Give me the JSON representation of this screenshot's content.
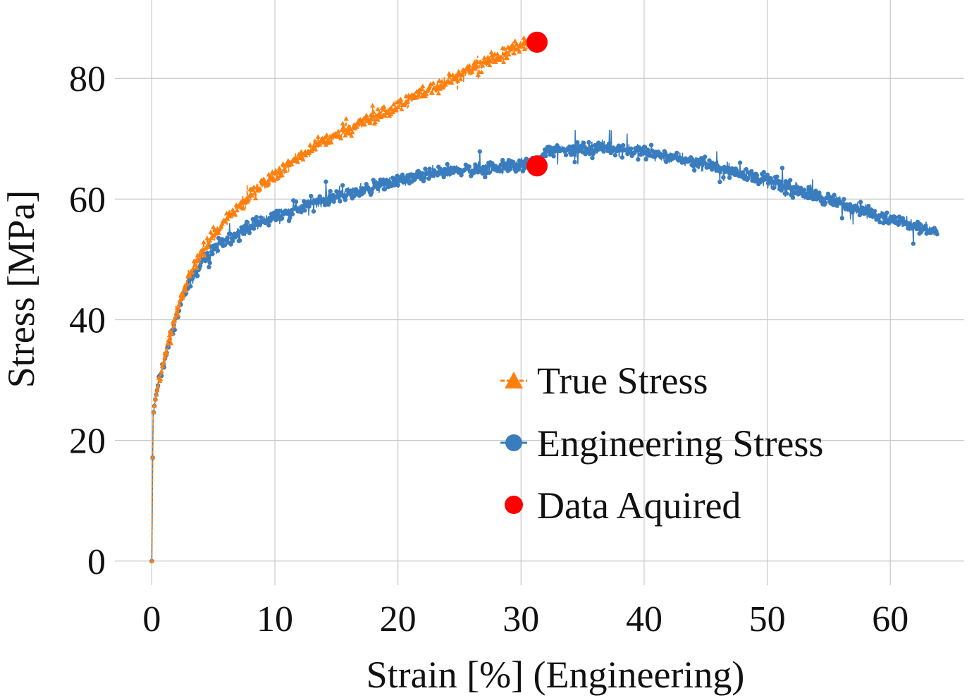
{
  "chart_data": {
    "type": "line",
    "xlabel": "Strain [%] (Engineering)",
    "ylabel": "Stress [MPa]",
    "xlim": [
      -3,
      66
    ],
    "ylim": [
      -4,
      93
    ],
    "xticks": [
      0,
      10,
      20,
      30,
      40,
      50,
      60
    ],
    "yticks": [
      0,
      20,
      40,
      60,
      80
    ],
    "grid": true,
    "legend_position": "bottom-right",
    "series": [
      {
        "name": "True Stress",
        "color": "#ff7f0e",
        "marker": "triangle",
        "line_style": "dashed",
        "x": [
          0,
          0.1,
          0.3,
          0.6,
          1,
          1.5,
          2,
          2.5,
          3,
          4,
          5,
          6,
          7,
          8,
          9,
          10,
          11,
          12,
          13,
          14,
          15,
          16,
          17,
          18,
          19,
          20,
          21,
          22,
          23,
          24,
          25,
          26,
          27,
          28,
          29,
          30,
          31.3
        ],
        "y": [
          0,
          24,
          27,
          30,
          33,
          37,
          41,
          44,
          47,
          51,
          54,
          56.5,
          58.5,
          60.5,
          62.5,
          64,
          65.5,
          67,
          68.5,
          69.5,
          70.5,
          71.5,
          72.5,
          73.5,
          74.5,
          75.5,
          76.5,
          77.5,
          78.5,
          79.5,
          80.5,
          81.5,
          82.5,
          83.5,
          84.5,
          85.5,
          86.3
        ]
      },
      {
        "name": "Engineering Stress",
        "color": "#3a7dbf",
        "marker": "circle",
        "line_style": "solid",
        "x": [
          0,
          0.1,
          0.3,
          0.6,
          1,
          1.5,
          2,
          2.5,
          3,
          4,
          5,
          6,
          7,
          8,
          10,
          12,
          14,
          16,
          18,
          20,
          22,
          24,
          26,
          28,
          30,
          31.3,
          32,
          34,
          36,
          38,
          40,
          42,
          44,
          46,
          48,
          50,
          52,
          54,
          56,
          58,
          60,
          62,
          63.8
        ],
        "y": [
          0,
          24,
          27,
          30,
          33,
          37,
          40.5,
          43.5,
          46,
          49.5,
          51.5,
          53,
          54.5,
          55.5,
          57,
          58.5,
          60,
          61,
          62,
          63,
          64,
          64.5,
          65,
          65.3,
          65.6,
          65.8,
          68,
          68.3,
          68.5,
          68.3,
          67.8,
          67,
          66.2,
          65.2,
          64.2,
          63,
          61.8,
          60.5,
          59.2,
          58,
          56.8,
          55.5,
          54.5
        ]
      }
    ],
    "annotations": {
      "name": "Data Aquired",
      "color": "#ff0000",
      "points": [
        {
          "x": 31.3,
          "y": 86
        },
        {
          "x": 31.3,
          "y": 65.5
        }
      ]
    }
  }
}
